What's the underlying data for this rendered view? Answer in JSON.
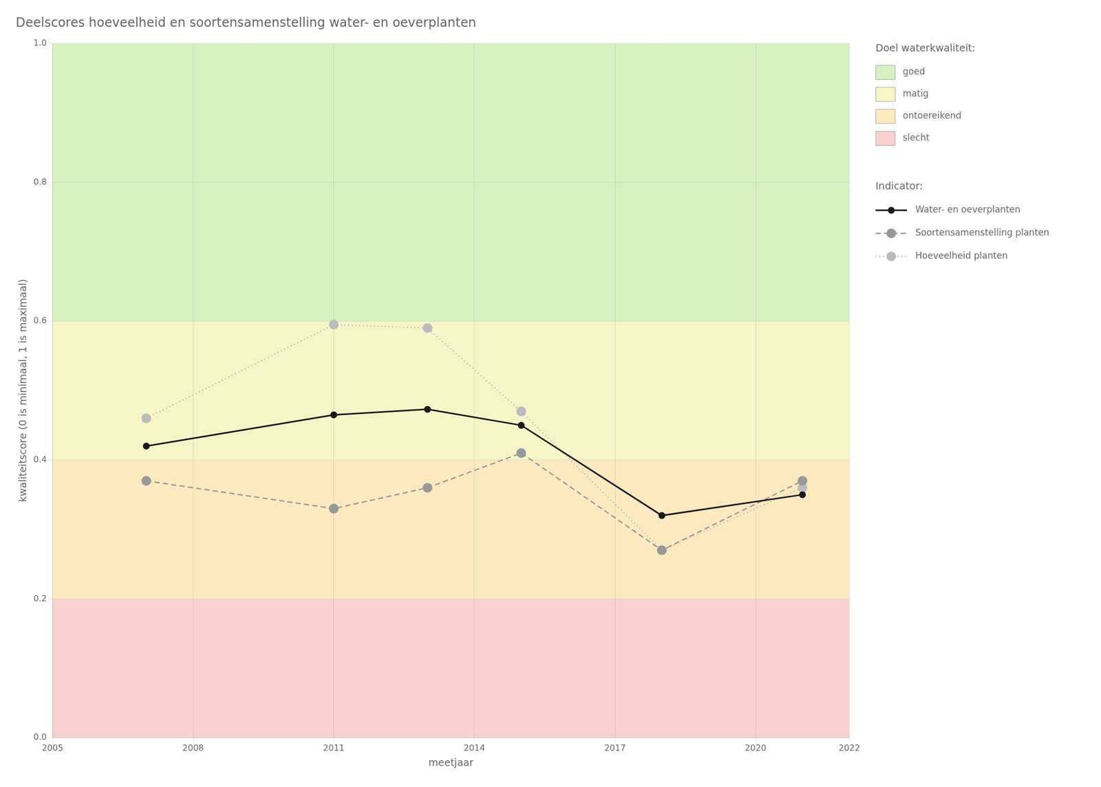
{
  "chart_data": {
    "type": "line",
    "title": "Deelscores hoeveelheid en soortensamenstelling water- en oeverplanten",
    "xlabel": "meetjaar",
    "ylabel": "kwaliteitscore (0 is minimaal, 1 is maximaal)",
    "x": [
      2007,
      2011,
      2013,
      2015,
      2018,
      2021
    ],
    "series": [
      {
        "name": "Hoeveelheid planten",
        "color": "#bbbbbb",
        "values": [
          0.46,
          0.595,
          0.59,
          0.47,
          0.27,
          0.36
        ],
        "marker": "circle",
        "line_style": "dotted"
      },
      {
        "name": "Soortensamenstelling planten",
        "color": "#999999",
        "values": [
          0.37,
          0.33,
          0.36,
          0.41,
          0.27,
          0.37
        ],
        "marker": "circle",
        "line_style": "dashed"
      },
      {
        "name": "Water- en oeverplanten",
        "color": "#1a1a1a",
        "values": [
          0.42,
          0.465,
          0.473,
          0.45,
          0.32,
          0.35
        ],
        "marker": "circle",
        "line_style": "solid"
      }
    ],
    "xlim": [
      2005,
      2022
    ],
    "ylim": [
      0.0,
      1.0
    ],
    "xticks": [
      2005,
      2008,
      2011,
      2014,
      2017,
      2020,
      2022
    ],
    "yticks": [
      {
        "value": 0.0,
        "label": "0.0"
      },
      0.2,
      0.4,
      0.6,
      0.8,
      {
        "value": 1.0,
        "label": "1.0"
      }
    ],
    "grid": true,
    "legend": "right",
    "series_legend_title": "Indicator:",
    "bands_legend_title": "Doel waterkwaliteit:",
    "bands": [
      {
        "ymin": 0.6,
        "ymax": 1.0,
        "color": "#d6f0c2",
        "label": "goed"
      },
      {
        "ymin": 0.4,
        "ymax": 0.6,
        "color": "#f5f5c8",
        "label": "matig"
      },
      {
        "ymin": 0.2,
        "ymax": 0.4,
        "color": "#fde9c0",
        "label": "ontoereikend"
      },
      {
        "ymin": 0.0,
        "ymax": 0.2,
        "color": "#f9d0d0",
        "label": "slecht"
      }
    ]
  }
}
